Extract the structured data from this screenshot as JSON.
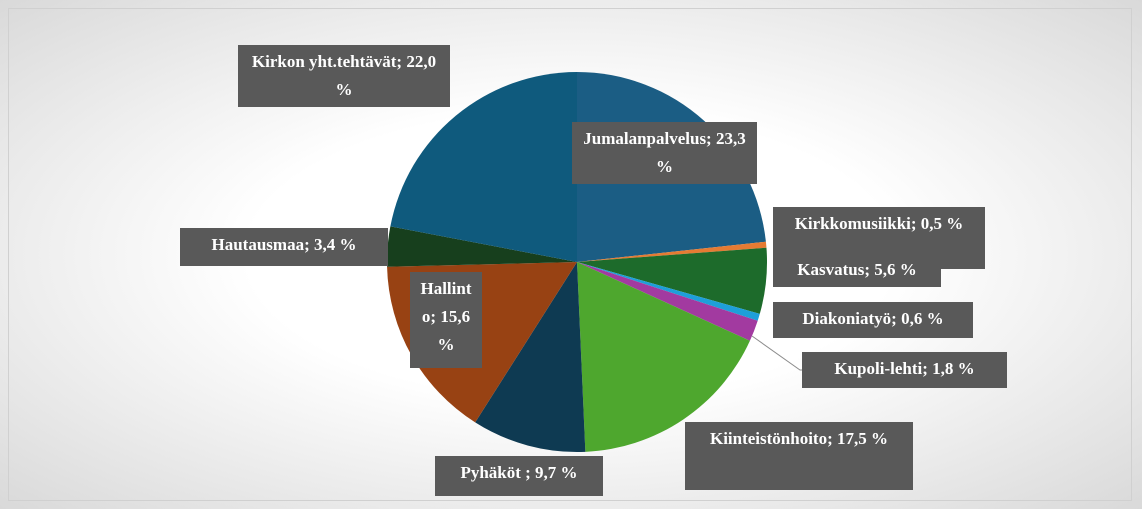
{
  "chart_data": {
    "type": "pie",
    "values": [
      23.3,
      0.5,
      5.6,
      0.6,
      1.8,
      17.5,
      9.7,
      15.6,
      3.4,
      22.0
    ],
    "value_labels": [
      "Jumalanpalvelus; 23,3 %",
      "Kirkkomusiikki; 0,5 %",
      "Kasvatus; 5,6 %",
      "Diakoniatyö; 0,6 %",
      "Kupoli-lehti; 1,8 %",
      "Kiinteistönhoito; 17,5 %",
      "Pyhäköt ; 9,7 %",
      "Hallinto; 15,6 %",
      "Hautausmaa; 3,4 %",
      "Kirkon yht.tehtävät; 22,0 %"
    ],
    "colors": [
      "#1b5d84",
      "#e57b33",
      "#1d6b2b",
      "#1e9fd9",
      "#a23aa0",
      "#4ea72e",
      "#0e3a52",
      "#984213",
      "#173f1d",
      "#0f5a7d"
    ]
  }
}
